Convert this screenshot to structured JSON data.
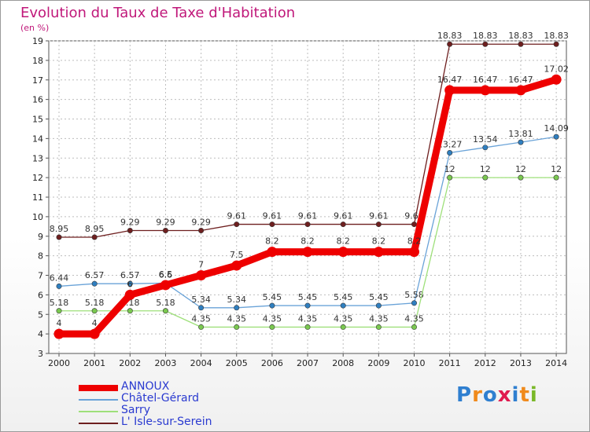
{
  "header": {
    "title": "Evolution du Taux de Taxe d'Habitation",
    "unit": "(en %)"
  },
  "logo": {
    "text": "Proxiti",
    "letter_colors": [
      "#2f7fd0",
      "#f08a1c",
      "#2f7fd0",
      "#e01a4f",
      "#2f7fd0",
      "#f08a1c",
      "#7ab828"
    ]
  },
  "chart_data": {
    "type": "line",
    "x": [
      2000,
      2001,
      2002,
      2003,
      2004,
      2005,
      2006,
      2007,
      2008,
      2009,
      2010,
      2011,
      2012,
      2013,
      2014
    ],
    "ylim": [
      3,
      19
    ],
    "yticks": [
      3,
      4,
      5,
      6,
      7,
      8,
      9,
      10,
      11,
      12,
      13,
      14,
      15,
      16,
      17,
      18,
      19
    ],
    "grid": true,
    "legend_position": "bottom-left",
    "series": [
      {
        "name": "L' Isle-sur-Serein",
        "color": "#6e1f1f",
        "marker_color": "#6e1f1f",
        "width": 1.3,
        "marker_r": 3.2,
        "values": [
          8.95,
          8.95,
          9.29,
          9.29,
          9.29,
          9.61,
          9.61,
          9.61,
          9.61,
          9.61,
          9.61,
          18.83,
          18.83,
          18.83,
          18.83
        ],
        "labels": [
          "8.95",
          "8.95",
          "9.29",
          "9.29",
          "9.29",
          "9.61",
          "9.61",
          "9.61",
          "9.61",
          "9.61",
          "9.61",
          "18.83",
          "18.83",
          "18.83",
          "18.83"
        ]
      },
      {
        "name": "Châtel-Gérard",
        "color": "#6aa3d8",
        "marker_color": "#2f7fc0",
        "width": 1.3,
        "marker_r": 3.2,
        "values": [
          6.44,
          6.57,
          6.57,
          6.6,
          5.34,
          5.34,
          5.45,
          5.45,
          5.45,
          5.45,
          5.58,
          13.27,
          13.54,
          13.81,
          14.09
        ],
        "labels": [
          "6.44",
          "6.57",
          "6.57",
          "6.6",
          "5.34",
          "5.34",
          "5.45",
          "5.45",
          "5.45",
          "5.45",
          "5.58",
          "13.27",
          "13.54",
          "13.81",
          "14.09"
        ]
      },
      {
        "name": "Sarry",
        "color": "#9ee07a",
        "marker_color": "#7ac850",
        "width": 1.3,
        "marker_r": 3.2,
        "values": [
          5.18,
          5.18,
          5.18,
          5.18,
          4.35,
          4.35,
          4.35,
          4.35,
          4.35,
          4.35,
          4.35,
          12,
          12,
          12,
          12
        ],
        "labels": [
          "5.18",
          "5.18",
          "5.18",
          "5.18",
          "4.35",
          "4.35",
          "4.35",
          "4.35",
          "4.35",
          "4.35",
          "4.35",
          "12",
          "12",
          "12",
          "12"
        ]
      },
      {
        "name": "ANNOUX",
        "color": "#ee0000",
        "marker_color": "#ee0000",
        "width": 9,
        "marker_r": 6.5,
        "values": [
          4,
          4,
          6,
          6.5,
          7,
          7.5,
          8.2,
          8.2,
          8.2,
          8.2,
          8.2,
          16.47,
          16.47,
          16.47,
          17.02
        ],
        "labels": [
          "4",
          "4",
          "6",
          "6.5",
          "7",
          "7.5",
          "8.2",
          "8.2",
          "8.2",
          "8.2",
          "8.2",
          "16.47",
          "16.47",
          "16.47",
          "17.02"
        ]
      }
    ]
  }
}
